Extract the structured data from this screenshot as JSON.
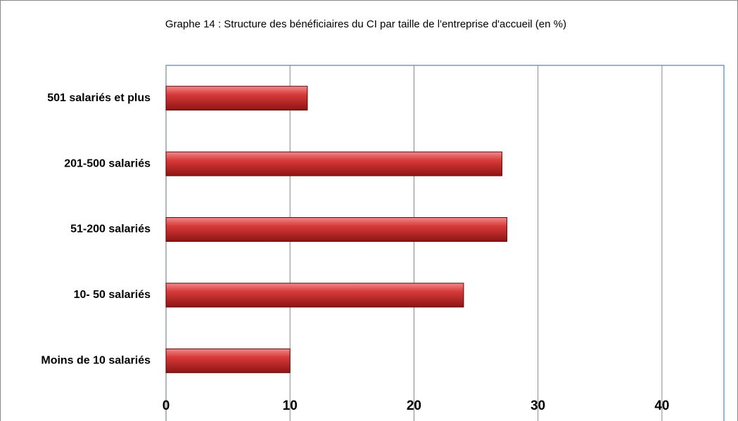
{
  "chart_data": {
    "type": "bar",
    "orientation": "horizontal",
    "title": "Graphe 14 : Structure des bénéficiaires du CI par taille de l'entreprise d'accueil (en %)",
    "categories": [
      "Moins de 10 salariés",
      "10- 50 salariés",
      "51-200 salariés",
      "201-500 salariés",
      "501 salariés et plus"
    ],
    "values": [
      10.0,
      24.0,
      27.5,
      27.1,
      11.4
    ],
    "color": "#c0282a",
    "xlim": [
      0,
      45
    ],
    "xticks": [
      0,
      10,
      20,
      30,
      40
    ],
    "grid": true
  }
}
